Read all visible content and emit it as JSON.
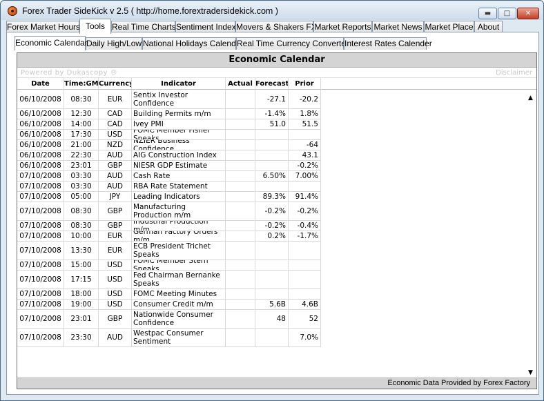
{
  "window": {
    "title": "Forex Trader SideKick  v 2.5 ( http://home.forextradersidekick.com )"
  },
  "main_tabs": [
    {
      "label": "Forex Market Hours"
    },
    {
      "label": "Tools"
    },
    {
      "label": "Real Time Charts"
    },
    {
      "label": "Sentiment Index"
    },
    {
      "label": "Movers & Shakers FX"
    },
    {
      "label": "Market Reports"
    },
    {
      "label": "Market News"
    },
    {
      "label": "Market Place"
    },
    {
      "label": "About"
    }
  ],
  "sub_tabs": [
    {
      "label": "Economic Calendar"
    },
    {
      "label": "Daily High/Low"
    },
    {
      "label": "National Holidays Calender"
    },
    {
      "label": "Real Time Currency Converter"
    },
    {
      "label": "Interest Rates Calender"
    }
  ],
  "calendar": {
    "title": "Economic Calendar",
    "powered_by": "Powered by Dukascopy ®",
    "disclaimer": "Disclaimer",
    "footer": "Economic Data Provided by Forex Factory",
    "columns": [
      "Date",
      "Time:GM",
      "Currency",
      "Indicator",
      "Actual",
      "Forecast",
      "Prior"
    ],
    "rows": [
      {
        "date": "06/10/2008",
        "time": "08:30",
        "currency": "EUR",
        "indicator": "Sentix Investor Confidence",
        "actual": "",
        "forecast": "-27.1",
        "prior": "-20.2"
      },
      {
        "date": "06/10/2008",
        "time": "12:30",
        "currency": "CAD",
        "indicator": "Building Permits m/m",
        "actual": "",
        "forecast": "-1.4%",
        "prior": "1.8%"
      },
      {
        "date": "06/10/2008",
        "time": "14:00",
        "currency": "CAD",
        "indicator": "Ivey PMI",
        "actual": "",
        "forecast": "51.0",
        "prior": "51.5"
      },
      {
        "date": "06/10/2008",
        "time": "17:30",
        "currency": "USD",
        "indicator": "FOMC Member Fisher Speaks",
        "actual": "",
        "forecast": "",
        "prior": ""
      },
      {
        "date": "06/10/2008",
        "time": "21:00",
        "currency": "NZD",
        "indicator": "NZIER Business Confidence",
        "actual": "",
        "forecast": "",
        "prior": "-64"
      },
      {
        "date": "06/10/2008",
        "time": "22:30",
        "currency": "AUD",
        "indicator": "AIG Construction Index",
        "actual": "",
        "forecast": "",
        "prior": "43.1"
      },
      {
        "date": "06/10/2008",
        "time": "23:01",
        "currency": "GBP",
        "indicator": "NIESR GDP Estimate",
        "actual": "",
        "forecast": "",
        "prior": "-0.2%"
      },
      {
        "date": "07/10/2008",
        "time": "03:30",
        "currency": "AUD",
        "indicator": "Cash Rate",
        "actual": "",
        "forecast": "6.50%",
        "prior": "7.00%"
      },
      {
        "date": "07/10/2008",
        "time": "03:30",
        "currency": "AUD",
        "indicator": "RBA Rate Statement",
        "actual": "",
        "forecast": "",
        "prior": ""
      },
      {
        "date": "07/10/2008",
        "time": "05:00",
        "currency": "JPY",
        "indicator": "Leading Indicators",
        "actual": "",
        "forecast": "89.3%",
        "prior": "91.4%"
      },
      {
        "date": "07/10/2008",
        "time": "08:30",
        "currency": "GBP",
        "indicator": "Manufacturing Production m/m",
        "actual": "",
        "forecast": "-0.2%",
        "prior": "-0.2%"
      },
      {
        "date": "07/10/2008",
        "time": "08:30",
        "currency": "GBP",
        "indicator": "Industrial Production m/m",
        "actual": "",
        "forecast": "-0.2%",
        "prior": "-0.4%"
      },
      {
        "date": "07/10/2008",
        "time": "10:00",
        "currency": "EUR",
        "indicator": "German Factory Orders m/m",
        "actual": "",
        "forecast": "0.2%",
        "prior": "-1.7%"
      },
      {
        "date": "07/10/2008",
        "time": "13:30",
        "currency": "EUR",
        "indicator": "ECB President Trichet Speaks",
        "actual": "",
        "forecast": "",
        "prior": ""
      },
      {
        "date": "07/10/2008",
        "time": "15:00",
        "currency": "USD",
        "indicator": "FOMC Member Stern Speaks",
        "actual": "",
        "forecast": "",
        "prior": ""
      },
      {
        "date": "07/10/2008",
        "time": "17:15",
        "currency": "USD",
        "indicator": "Fed Chairman Bernanke Speaks",
        "actual": "",
        "forecast": "",
        "prior": ""
      },
      {
        "date": "07/10/2008",
        "time": "18:00",
        "currency": "USD",
        "indicator": "FOMC Meeting Minutes",
        "actual": "",
        "forecast": "",
        "prior": ""
      },
      {
        "date": "07/10/2008",
        "time": "19:00",
        "currency": "USD",
        "indicator": "Consumer Credit m/m",
        "actual": "",
        "forecast": "5.6B",
        "prior": "4.6B"
      },
      {
        "date": "07/10/2008",
        "time": "23:01",
        "currency": "GBP",
        "indicator": "Nationwide Consumer Confidence",
        "actual": "",
        "forecast": "48",
        "prior": "52"
      },
      {
        "date": "07/10/2008",
        "time": "23:30",
        "currency": "AUD",
        "indicator": "Westpac Consumer Sentiment",
        "actual": "",
        "forecast": "",
        "prior": "7.0%"
      }
    ]
  },
  "icons": {
    "app": "app-icon",
    "minimize": "minimize-icon",
    "maximize": "maximize-icon",
    "close": "close-icon",
    "scroll_up": "arrow-up-icon",
    "scroll_down": "arrow-down-icon"
  }
}
